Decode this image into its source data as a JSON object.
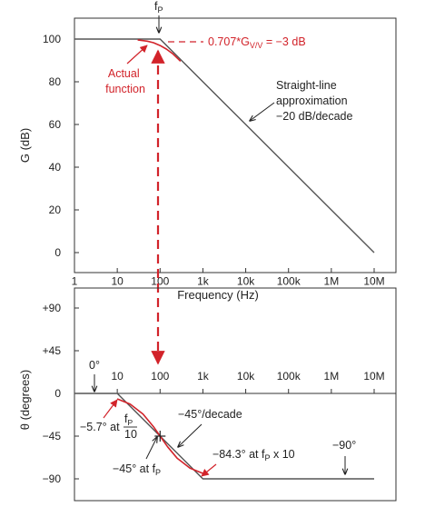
{
  "colors": {
    "curve": "#555555",
    "accent": "#d2232a",
    "frame": "#333333",
    "text": "#222222"
  },
  "chart_data": [
    {
      "type": "line",
      "xscale": "log",
      "x_tick_labels": [
        "1",
        "10",
        "100",
        "1k",
        "10k",
        "100k",
        "1M",
        "10M"
      ],
      "x_tick_values": [
        1,
        10,
        100,
        1000,
        10000,
        100000,
        1000000,
        10000000
      ],
      "xlim": [
        1,
        10000000
      ],
      "xlabel": "Frequency (Hz)",
      "ylabel": "G (dB)",
      "y_tick_labels": [
        "0",
        "20",
        "40",
        "60",
        "80",
        "100"
      ],
      "ylim": [
        0,
        100
      ],
      "series": [
        {
          "id": "straight-line",
          "x": [
            1,
            100,
            10000000
          ],
          "y": [
            100,
            100,
            0
          ]
        },
        {
          "id": "actual",
          "x": [
            30,
            50,
            70,
            100,
            140,
            200,
            300
          ],
          "y": [
            99.6,
            99.0,
            98.3,
            97,
            95.3,
            93.0,
            89.6
          ]
        }
      ],
      "marker_label": "f",
      "marker_subscript": "P",
      "marker_x": 100,
      "annotations": {
        "minus3db_prefix": "0.707*G",
        "minus3db_sub": "V/V",
        "minus3db_suffix": " = −3 dB",
        "actual_line1": "Actual",
        "actual_line2": "function",
        "approx_line1": "Straight-line",
        "approx_line2": "approximation",
        "approx_line3": "−20 dB/decade"
      }
    },
    {
      "type": "line",
      "xscale": "log",
      "x_tick_labels": [
        "10",
        "100",
        "1k",
        "10k",
        "100k",
        "1M",
        "10M"
      ],
      "x_tick_values": [
        10,
        100,
        1000,
        10000,
        100000,
        1000000,
        10000000
      ],
      "xlim": [
        1,
        10000000
      ],
      "ylabel": "θ (degrees)",
      "y_tick_labels": [
        "+90",
        "+45",
        "0",
        "−45",
        "−90"
      ],
      "y_tick_values": [
        90,
        45,
        0,
        -45,
        -90
      ],
      "ylim": [
        -90,
        90
      ],
      "series": [
        {
          "id": "straight-line",
          "x": [
            1,
            10,
            1000,
            10000000
          ],
          "y": [
            0,
            0,
            -90,
            -90
          ]
        },
        {
          "id": "actual",
          "x": [
            10,
            20,
            40,
            70,
            100,
            150,
            250,
            500,
            1000
          ],
          "y": [
            -5.7,
            -11.3,
            -21.8,
            -35.0,
            -45,
            -56.3,
            -68.2,
            -78.7,
            -84.3
          ]
        }
      ],
      "annotations": {
        "zero_deg": "0°",
        "minus90_deg": "−90°",
        "slope": "−45°/decade",
        "at_fp_prefix": "−45° at f",
        "at_fp_sub": "P",
        "tenth_prefix": "−5.7° at",
        "tenth_num": "f",
        "tenth_num_sub": "P",
        "tenth_den": "10",
        "times10_prefix": "−84.3° at f",
        "times10_sub": "P",
        "times10_suffix": " x 10"
      }
    }
  ]
}
